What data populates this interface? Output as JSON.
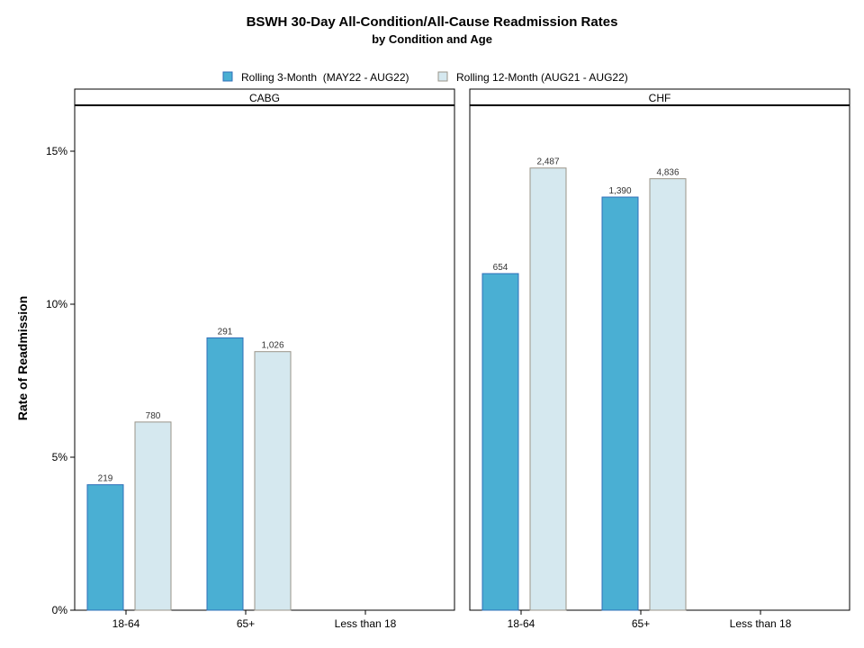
{
  "chart_data": {
    "type": "bar",
    "title": "BSWH 30-Day All-Condition/All-Cause Readmission Rates",
    "subtitle": "by Condition and Age",
    "ylabel": "Rate of Readmission",
    "ylim": [
      0,
      0.165
    ],
    "yticks": [
      0,
      0.05,
      0.1,
      0.15
    ],
    "ytick_labels": [
      "0%",
      "5%",
      "10%",
      "15%"
    ],
    "categories": [
      "18-64",
      "65+",
      "Less than 18"
    ],
    "legend_position": "top",
    "series": [
      {
        "name": "Rolling 3-Month  (MAY22 - AUG22)",
        "color": "#4aafd3",
        "stroke": "#2f6fba"
      },
      {
        "name": "Rolling 12-Month (AUG21 - AUG22)",
        "color": "#d5e8ef",
        "stroke": "#9a9488"
      }
    ],
    "panels": [
      {
        "name": "CABG",
        "values": [
          [
            0.041,
            0.089,
            null
          ],
          [
            0.0615,
            0.0845,
            null
          ]
        ],
        "labels": [
          [
            "219",
            "291",
            ""
          ],
          [
            "780",
            "1,026",
            ""
          ]
        ]
      },
      {
        "name": "CHF",
        "values": [
          [
            0.11,
            0.135,
            null
          ],
          [
            0.1445,
            0.141,
            null
          ]
        ],
        "labels": [
          [
            "654",
            "1,390",
            ""
          ],
          [
            "2,487",
            "4,836",
            ""
          ]
        ]
      }
    ]
  }
}
